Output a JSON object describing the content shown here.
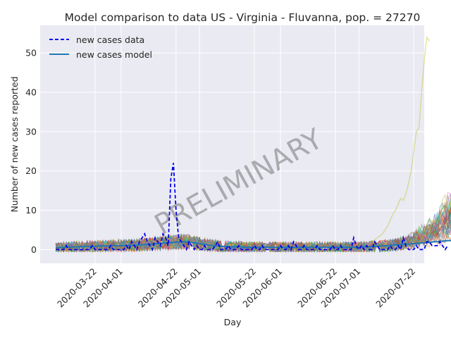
{
  "chart_data": {
    "type": "line",
    "title": "Model comparison to data US - Virginia - Fluvanna, pop. = 27270",
    "xlabel": "Day",
    "ylabel": "Number of new cases reported",
    "watermark": "PRELIMINARY",
    "x_ticks": [
      "2020-03-22",
      "2020-04-01",
      "2020-04-22",
      "2020-05-01",
      "2020-05-22",
      "2020-06-01",
      "2020-06-22",
      "2020-07-01",
      "2020-07-22"
    ],
    "y_ticks": [
      "0",
      "10",
      "20",
      "30",
      "40",
      "50"
    ],
    "ylim": [
      -3.5,
      57
    ],
    "xlim": [
      "2020-03-01",
      "2020-07-26"
    ],
    "grid": true,
    "legend_position": "top-left",
    "legend": [
      {
        "label": "new cases data",
        "style": "dashed",
        "color": "#0000ee"
      },
      {
        "label": "new cases model",
        "style": "solid",
        "color": "#1f77b4"
      }
    ],
    "data_start_date": "2020-03-07",
    "series_data": {
      "name": "new cases data",
      "values": [
        0,
        0,
        0,
        0,
        1,
        0,
        0,
        0,
        0,
        0,
        0,
        0,
        0,
        0,
        1,
        0,
        0,
        0,
        0,
        0,
        0,
        1,
        0,
        0,
        0,
        0,
        0,
        1,
        0,
        2,
        1,
        0,
        2,
        3,
        4,
        2,
        1,
        0,
        3,
        2,
        1,
        4,
        3,
        1,
        18,
        22,
        10,
        3,
        2,
        1,
        0,
        2,
        1,
        0,
        1,
        0,
        0,
        1,
        0,
        0,
        0,
        1,
        2,
        0,
        0,
        0,
        1,
        0,
        0,
        0,
        1,
        0,
        0,
        0,
        0,
        0,
        1,
        0,
        0,
        1,
        0,
        0,
        0,
        0,
        0,
        0,
        1,
        0,
        0,
        1,
        0,
        2,
        1,
        0,
        0,
        1,
        0,
        0,
        0,
        0,
        1,
        0,
        0,
        0,
        0,
        0,
        1,
        0,
        0,
        1,
        0,
        0,
        0,
        0,
        3,
        1,
        0,
        1,
        0,
        1,
        0,
        0,
        2,
        1,
        0,
        0,
        0,
        0,
        1,
        0,
        0,
        1,
        0,
        3,
        1,
        0,
        0,
        0,
        1,
        0,
        0,
        0,
        2,
        2,
        1,
        1,
        1,
        2,
        1,
        0,
        1
      ]
    },
    "model_series": {
      "name": "new cases model",
      "values": [
        0.5,
        0.5,
        0.5,
        0.6,
        0.6,
        0.6,
        0.6,
        0.7,
        0.7,
        0.7,
        0.7,
        0.8,
        0.8,
        0.8,
        0.8,
        0.8,
        0.9,
        0.9,
        0.9,
        0.9,
        0.9,
        1.0,
        1.0,
        1.0,
        1.0,
        1.0,
        1.0,
        1.0,
        1.1,
        1.1,
        1.1,
        1.1,
        1.2,
        1.2,
        1.3,
        1.3,
        1.4,
        1.4,
        1.5,
        1.5,
        1.6,
        1.6,
        1.7,
        1.7,
        1.8,
        1.8,
        1.9,
        1.9,
        2.0,
        2.0,
        1.9,
        1.9,
        1.8,
        1.7,
        1.6,
        1.5,
        1.4,
        1.3,
        1.2,
        1.1,
        1.0,
        1.0,
        0.9,
        0.9,
        0.8,
        0.8,
        0.8,
        0.7,
        0.7,
        0.7,
        0.7,
        0.7,
        0.6,
        0.6,
        0.6,
        0.6,
        0.6,
        0.6,
        0.6,
        0.6,
        0.6,
        0.6,
        0.6,
        0.6,
        0.6,
        0.6,
        0.6,
        0.6,
        0.6,
        0.6,
        0.6,
        0.6,
        0.6,
        0.6,
        0.6,
        0.6,
        0.6,
        0.6,
        0.6,
        0.6,
        0.6,
        0.6,
        0.6,
        0.6,
        0.6,
        0.6,
        0.6,
        0.6,
        0.6,
        0.6,
        0.6,
        0.6,
        0.6,
        0.6,
        0.6,
        0.6,
        0.6,
        0.7,
        0.7,
        0.7,
        0.7,
        0.8,
        0.8,
        0.8,
        0.9,
        0.9,
        1.0,
        1.0,
        1.1,
        1.1,
        1.2,
        1.2,
        1.3,
        1.3,
        1.4,
        1.4,
        1.5,
        1.5,
        1.6,
        1.6,
        1.7,
        1.7,
        1.8,
        1.8,
        1.9,
        2.0,
        2.0,
        2.1,
        2.2,
        2.2,
        2.3,
        2.3,
        2.4
      ]
    },
    "ensemble_outlier": {
      "start_date": "2020-07-06",
      "values": [
        2.0,
        2.5,
        3.0,
        3.5,
        4.0,
        5.0,
        6.0,
        7.5,
        9.0,
        10.0,
        11.5,
        13.0,
        12.5,
        14.0,
        17.0,
        20.0,
        25.0,
        30.0,
        31.0,
        40.0,
        48.0,
        54.0,
        53.0
      ]
    }
  }
}
